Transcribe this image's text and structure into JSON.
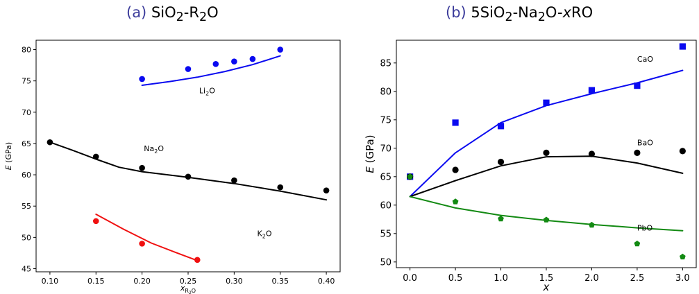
{
  "panels": {
    "a": {
      "tag": "(a)",
      "title_html": "SiO<sub>2</sub>-R<sub>2</sub>O"
    },
    "b": {
      "tag": "(b)",
      "title_html": "5SiO<sub>2</sub>-Na<sub>2</sub>O-<i>x</i>RO"
    }
  },
  "chart_data": [
    {
      "type": "scatter",
      "title": "(a) SiO2-R2O",
      "xlabel": "x_R2O",
      "ylabel": "E (GPa)",
      "xlim": [
        0.085,
        0.415
      ],
      "ylim": [
        44.5,
        81.5
      ],
      "xticks": [
        0.1,
        0.15,
        0.2,
        0.25,
        0.3,
        0.35,
        0.4
      ],
      "xtick_labels": [
        "0.10",
        "0.15",
        "0.20",
        "0.25",
        "0.30",
        "0.35",
        "0.40"
      ],
      "yticks": [
        45,
        50,
        55,
        60,
        65,
        70,
        75,
        80
      ],
      "ytick_labels": [
        "45",
        "50",
        "55",
        "60",
        "65",
        "70",
        "75",
        "80"
      ],
      "grid": false,
      "series": [
        {
          "name": "Li2O",
          "label_html": "Li<tspan font-size='8' dy='3'>2</tspan><tspan dy='-3'>O</tspan>",
          "color": "#0a0af0",
          "marker": "circle",
          "points": [
            [
              0.2,
              75.3
            ],
            [
              0.25,
              76.9
            ],
            [
              0.28,
              77.7
            ],
            [
              0.3,
              78.1
            ],
            [
              0.32,
              78.5
            ],
            [
              0.35,
              80.0
            ]
          ],
          "fit": [
            [
              0.2,
              74.3
            ],
            [
              0.23,
              74.9
            ],
            [
              0.26,
              75.6
            ],
            [
              0.29,
              76.5
            ],
            [
              0.32,
              77.6
            ],
            [
              0.35,
              79.0
            ]
          ],
          "label_pos": [
            0.262,
            73.0
          ]
        },
        {
          "name": "Na2O",
          "label_html": "Na<tspan font-size='8' dy='3'>2</tspan><tspan dy='-3'>O</tspan>",
          "color": "#000000",
          "marker": "circle",
          "points": [
            [
              0.1,
              65.2
            ],
            [
              0.15,
              62.9
            ],
            [
              0.2,
              61.1
            ],
            [
              0.25,
              59.7
            ],
            [
              0.3,
              59.1
            ],
            [
              0.35,
              58.0
            ],
            [
              0.4,
              57.5
            ]
          ],
          "fit": [
            [
              0.1,
              65.2
            ],
            [
              0.125,
              63.9
            ],
            [
              0.15,
              62.5
            ],
            [
              0.175,
              61.2
            ],
            [
              0.2,
              60.5
            ],
            [
              0.25,
              59.6
            ],
            [
              0.3,
              58.6
            ],
            [
              0.35,
              57.4
            ],
            [
              0.4,
              56.0
            ]
          ],
          "label_pos": [
            0.202,
            63.8
          ]
        },
        {
          "name": "K2O",
          "label_html": "K<tspan font-size='8' dy='3'>2</tspan><tspan dy='-3'>O</tspan>",
          "color": "#f01010",
          "marker": "circle",
          "points": [
            [
              0.15,
              52.6
            ],
            [
              0.2,
              49.0
            ],
            [
              0.26,
              46.4
            ]
          ],
          "fit": [
            [
              0.15,
              53.7
            ],
            [
              0.18,
              51.3
            ],
            [
              0.21,
              49.1
            ],
            [
              0.24,
              47.4
            ],
            [
              0.26,
              46.3
            ]
          ],
          "label_pos": [
            0.325,
            50.2
          ]
        }
      ]
    },
    {
      "type": "scatter",
      "title": "(b) 5SiO2-Na2O-xRO",
      "xlabel": "x",
      "ylabel": "E (GPa)",
      "xlim": [
        -0.15,
        3.15
      ],
      "ylim": [
        49,
        89
      ],
      "xticks": [
        0.0,
        0.5,
        1.0,
        1.5,
        2.0,
        2.5,
        3.0
      ],
      "xtick_labels": [
        "0.0",
        "0.5",
        "1.0",
        "1.5",
        "2.0",
        "2.5",
        "3.0"
      ],
      "yticks": [
        50,
        55,
        60,
        65,
        70,
        75,
        80,
        85
      ],
      "ytick_labels": [
        "50",
        "55",
        "60",
        "65",
        "70",
        "75",
        "80",
        "85"
      ],
      "grid": false,
      "series": [
        {
          "name": "CaO",
          "label_html": "CaO",
          "color": "#0a0af0",
          "marker": "square",
          "points": [
            [
              0.0,
              65.0
            ],
            [
              0.5,
              74.5
            ],
            [
              1.0,
              73.9
            ],
            [
              1.5,
              78.0
            ],
            [
              2.0,
              80.2
            ],
            [
              2.5,
              81.0
            ],
            [
              3.0,
              87.9
            ]
          ],
          "fit": [
            [
              0.0,
              61.5
            ],
            [
              0.5,
              69.2
            ],
            [
              1.0,
              74.5
            ],
            [
              1.5,
              77.5
            ],
            [
              2.0,
              79.6
            ],
            [
              2.5,
              81.5
            ],
            [
              3.0,
              83.7
            ]
          ],
          "label_pos": [
            2.5,
            85.2
          ]
        },
        {
          "name": "BaO",
          "label_html": "BaO",
          "color": "#000000",
          "marker": "circle",
          "points": [
            [
              0.0,
              65.0
            ],
            [
              0.5,
              66.2
            ],
            [
              1.0,
              67.6
            ],
            [
              1.5,
              69.2
            ],
            [
              2.0,
              69.0
            ],
            [
              2.5,
              69.2
            ],
            [
              3.0,
              69.5
            ]
          ],
          "fit": [
            [
              0.0,
              61.5
            ],
            [
              0.5,
              64.3
            ],
            [
              1.0,
              66.9
            ],
            [
              1.5,
              68.5
            ],
            [
              2.0,
              68.6
            ],
            [
              2.5,
              67.4
            ],
            [
              3.0,
              65.6
            ]
          ],
          "label_pos": [
            2.5,
            70.5
          ]
        },
        {
          "name": "PbO",
          "label_html": "PbO",
          "color": "#138a13",
          "marker": "pentagon",
          "points": [
            [
              0.0,
              65.0
            ],
            [
              0.5,
              60.6
            ],
            [
              1.0,
              57.6
            ],
            [
              1.5,
              57.4
            ],
            [
              2.0,
              56.5
            ],
            [
              2.5,
              53.2
            ],
            [
              3.0,
              50.9
            ]
          ],
          "fit": [
            [
              0.0,
              61.5
            ],
            [
              0.5,
              59.5
            ],
            [
              1.0,
              58.2
            ],
            [
              1.5,
              57.3
            ],
            [
              2.0,
              56.6
            ],
            [
              2.5,
              56.0
            ],
            [
              3.0,
              55.5
            ]
          ],
          "label_pos": [
            2.5,
            55.5
          ]
        }
      ]
    }
  ]
}
